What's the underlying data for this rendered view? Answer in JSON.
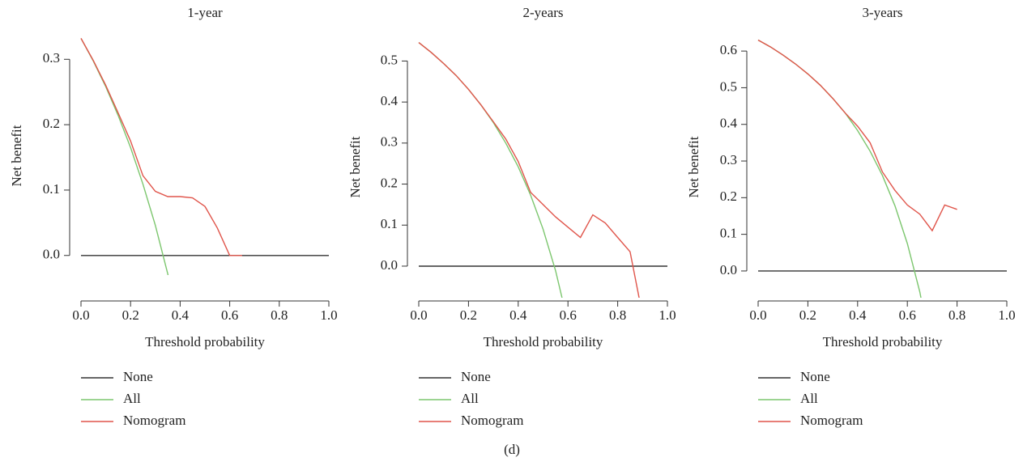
{
  "chart_data": [
    {
      "type": "line",
      "title": "1-year",
      "x_label": "Threshold probability",
      "y_label": "Net benefit",
      "x": [
        0,
        0.05,
        0.1,
        0.15,
        0.2,
        0.25,
        0.3,
        0.35,
        0.4,
        0.45,
        0.5,
        0.55,
        0.6,
        0.65,
        0.7,
        0.75,
        0.8,
        0.85,
        0.9,
        0.95,
        1
      ],
      "series": [
        {
          "name": "None",
          "color": "#333333",
          "values": [
            0,
            0,
            0,
            0,
            0,
            0,
            0,
            0,
            0,
            0,
            0,
            0,
            0,
            0,
            0,
            0,
            0,
            0,
            0,
            0,
            0
          ]
        },
        {
          "name": "All",
          "color": "#7cc66e",
          "values": [
            0.332,
            0.297,
            0.258,
            0.214,
            0.165,
            0.109,
            0.046,
            -0.028,
            -0.113,
            null,
            null,
            null,
            null,
            null,
            null,
            null,
            null,
            null,
            null,
            null,
            null
          ]
        },
        {
          "name": "Nomogram",
          "color": "#e0554b",
          "values": [
            0.332,
            0.298,
            0.26,
            0.218,
            0.175,
            0.122,
            0.098,
            0.09,
            0.09,
            0.088,
            0.075,
            0.042,
            0.0,
            0.0,
            null,
            null,
            null,
            null,
            null,
            null,
            null
          ]
        }
      ],
      "xlim": [
        -0.05,
        1
      ],
      "ylim": [
        -0.03,
        0.335
      ],
      "xticks": [
        {
          "value": 0,
          "label": "0.0"
        },
        0.2,
        0.4,
        0.6,
        0.8,
        {
          "value": 1,
          "label": "1.0"
        }
      ],
      "yticks": [
        {
          "value": 0,
          "label": "0.0"
        },
        0.1,
        0.2,
        0.3
      ],
      "legend": "below"
    },
    {
      "type": "line",
      "title": "2-years",
      "x_label": "Threshold probability",
      "y_label": "Net benefit",
      "x": [
        0,
        0.05,
        0.1,
        0.15,
        0.2,
        0.25,
        0.3,
        0.35,
        0.4,
        0.45,
        0.5,
        0.55,
        0.6,
        0.65,
        0.7,
        0.75,
        0.8,
        0.85,
        0.9,
        0.95,
        1
      ],
      "series": [
        {
          "name": "None",
          "color": "#333333",
          "values": [
            0,
            0,
            0,
            0,
            0,
            0,
            0,
            0,
            0,
            0,
            0,
            0,
            0,
            0,
            0,
            0,
            0,
            0,
            0,
            0,
            0
          ]
        },
        {
          "name": "All",
          "color": "#7cc66e",
          "values": [
            0.545,
            0.521,
            0.494,
            0.465,
            0.431,
            0.393,
            0.35,
            0.3,
            0.242,
            0.173,
            0.09,
            -0.011,
            -0.138,
            null,
            null,
            null,
            null,
            null,
            null,
            null,
            null
          ]
        },
        {
          "name": "Nomogram",
          "color": "#e0554b",
          "values": [
            0.545,
            0.521,
            0.494,
            0.465,
            0.431,
            0.393,
            0.352,
            0.31,
            0.255,
            0.18,
            0.15,
            0.12,
            0.095,
            0.07,
            0.125,
            0.105,
            0.07,
            0.035,
            -0.12,
            null,
            null
          ]
        }
      ],
      "xlim": [
        -0.05,
        1
      ],
      "ylim": [
        -0.077,
        0.56
      ],
      "xticks": [
        {
          "value": 0,
          "label": "0.0"
        },
        0.2,
        0.4,
        0.6,
        0.8,
        {
          "value": 1,
          "label": "1.0"
        }
      ],
      "yticks": [
        {
          "value": 0,
          "label": "0.0"
        },
        0.1,
        0.2,
        0.3,
        0.4,
        0.5
      ],
      "legend": "below"
    },
    {
      "type": "line",
      "title": "3-years",
      "x_label": "Threshold probability",
      "y_label": "Net benefit",
      "x": [
        0,
        0.05,
        0.1,
        0.15,
        0.2,
        0.25,
        0.3,
        0.35,
        0.4,
        0.45,
        0.5,
        0.55,
        0.6,
        0.65,
        0.7,
        0.75,
        0.8,
        0.85,
        0.9,
        0.95,
        1
      ],
      "series": [
        {
          "name": "None",
          "color": "#333333",
          "values": [
            0,
            0,
            0,
            0,
            0,
            0,
            0,
            0,
            0,
            0,
            0,
            0,
            0,
            0,
            0,
            0,
            0,
            0,
            0,
            0,
            0
          ]
        },
        {
          "name": "All",
          "color": "#7cc66e",
          "values": [
            0.63,
            0.611,
            0.589,
            0.565,
            0.5375,
            0.507,
            0.471,
            0.431,
            0.383,
            0.327,
            0.26,
            0.178,
            0.075,
            -0.057,
            -0.233,
            null,
            null,
            null,
            null,
            null,
            null
          ]
        },
        {
          "name": "Nomogram",
          "color": "#e0554b",
          "values": [
            0.63,
            0.611,
            0.589,
            0.565,
            0.5375,
            0.507,
            0.471,
            0.431,
            0.395,
            0.35,
            0.27,
            0.22,
            0.18,
            0.155,
            0.11,
            0.18,
            0.168,
            null,
            null,
            null,
            null
          ]
        }
      ],
      "xlim": [
        -0.05,
        1
      ],
      "ylim": [
        -0.073,
        0.64
      ],
      "xticks": [
        {
          "value": 0,
          "label": "0.0"
        },
        0.2,
        0.4,
        0.6,
        0.8,
        {
          "value": 1,
          "label": "1.0"
        }
      ],
      "yticks": [
        {
          "value": 0,
          "label": "0.0"
        },
        0.1,
        0.2,
        0.3,
        0.4,
        0.5,
        0.6
      ],
      "legend": "below"
    }
  ],
  "caption": "(d)"
}
